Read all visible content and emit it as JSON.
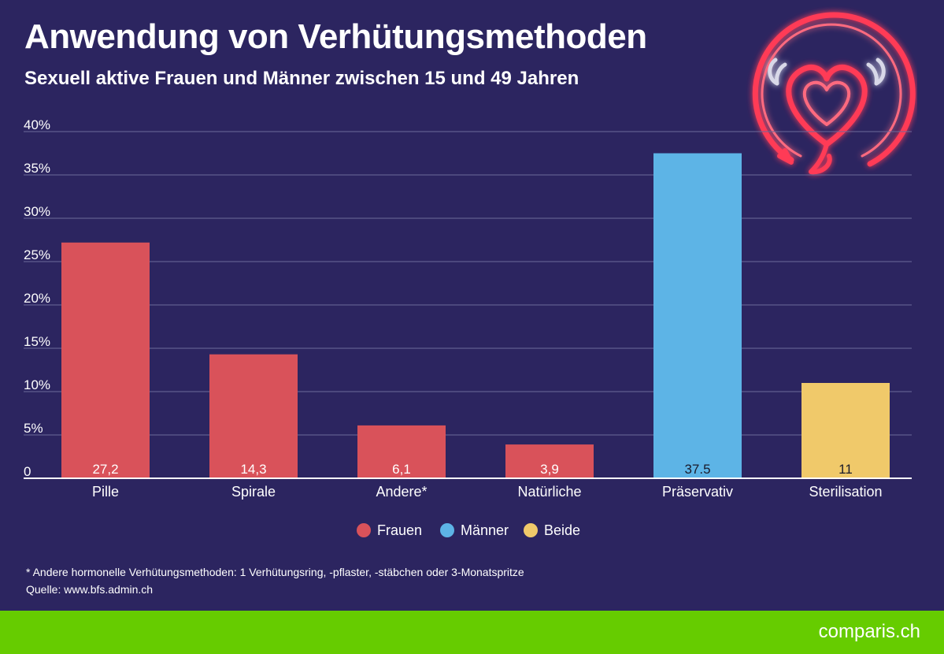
{
  "chart_data": {
    "type": "bar",
    "title": "Anwendung von Verhütungsmethoden",
    "subtitle": "Sexuell aktive Frauen und Männer zwischen 15 und 49 Jahren",
    "categories": [
      "Pille",
      "Spirale",
      "Andere*",
      "Natürliche",
      "Präservativ",
      "Sterilisation"
    ],
    "values": [
      27.2,
      14.3,
      6.1,
      3.9,
      37.5,
      11
    ],
    "value_labels": [
      "27,2",
      "14,3",
      "6,1",
      "3,9",
      "37.5",
      "11"
    ],
    "groups": [
      "Frauen",
      "Frauen",
      "Frauen",
      "Frauen",
      "Männer",
      "Beide"
    ],
    "legend": [
      {
        "name": "Frauen",
        "color": "#d9525a"
      },
      {
        "name": "Männer",
        "color": "#5db4e6"
      },
      {
        "name": "Beide",
        "color": "#f0c96a"
      }
    ],
    "yticks": [
      "0",
      "5%",
      "10%",
      "15%",
      "20%",
      "25%",
      "30%",
      "35%",
      "40%"
    ],
    "ylim": [
      0,
      40
    ],
    "grid": true,
    "legend_position": "bottom-center"
  },
  "footnote": "* Andere hormonelle Verhütungsmethoden: 1 Verhütungsring, -pflaster, -stäbchen oder 3-Monatspritze",
  "source": "Quelle: www.bfs.admin.ch",
  "brand": {
    "name": "comparis.ch",
    "color": "#66cc00"
  },
  "decoration_icon": "neon-devil-heart-icon"
}
